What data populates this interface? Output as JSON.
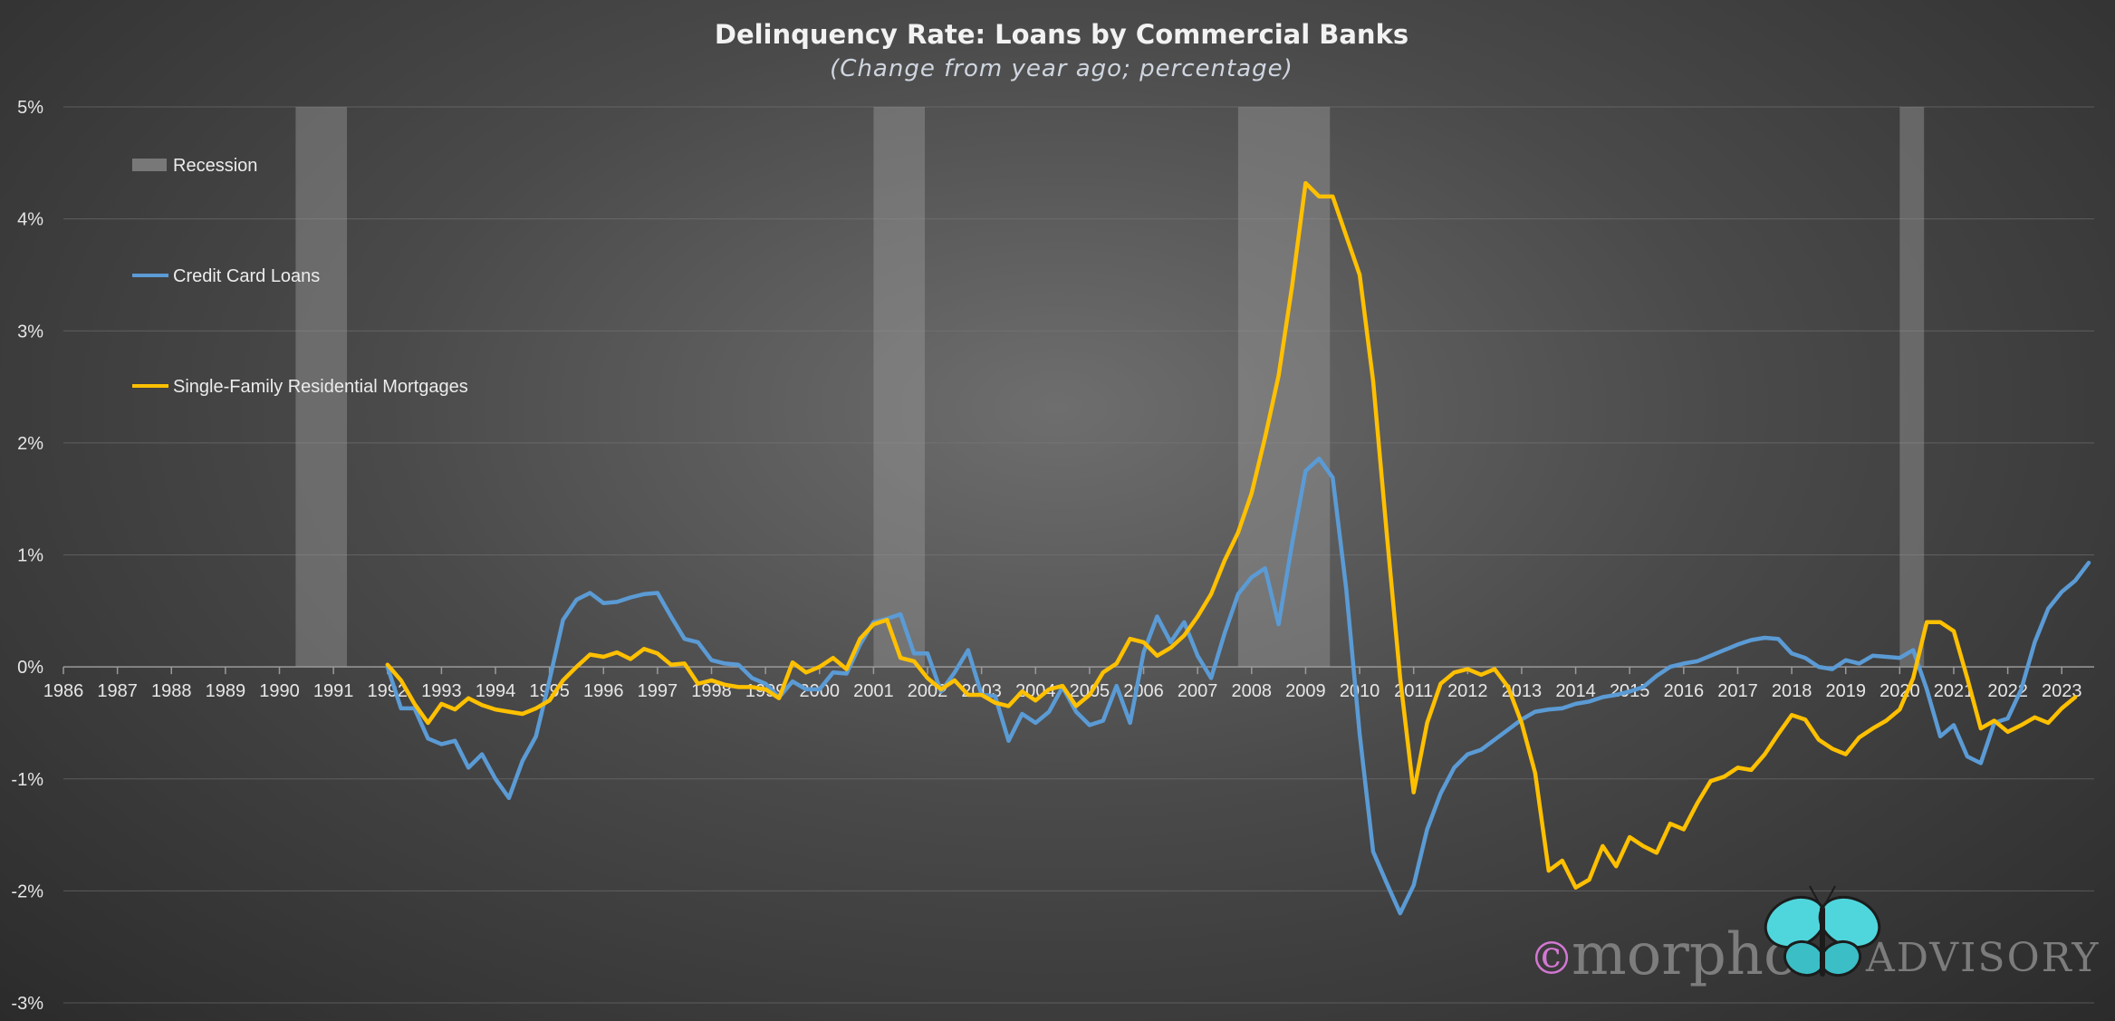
{
  "chart_data": {
    "type": "line",
    "title": "Delinquency Rate: Loans by Commercial Banks",
    "subtitle": "(Change from year ago; percentage)",
    "y_tick_labels": [
      "5%",
      "4%",
      "3%",
      "2%",
      "1%",
      "0%",
      "-1%",
      "-2%",
      "-3%"
    ],
    "ylim": [
      -3,
      5
    ],
    "xlim": [
      1986,
      2023.6
    ],
    "x_tick_labels": [
      "1986",
      "1987",
      "1988",
      "1989",
      "1990",
      "1991",
      "1992",
      "1993",
      "1994",
      "1995",
      "1996",
      "1997",
      "1998",
      "1999",
      "2000",
      "2001",
      "2002",
      "2003",
      "2004",
      "2005",
      "2006",
      "2007",
      "2008",
      "2009",
      "2010",
      "2011",
      "2012",
      "2013",
      "2014",
      "2015",
      "2016",
      "2017",
      "2018",
      "2019",
      "2020",
      "2021",
      "2022",
      "2023"
    ],
    "legend": {
      "placement": "top-left",
      "recession_label": "Recession"
    },
    "recessions": [
      {
        "start": 1990.3,
        "end": 1991.25
      },
      {
        "start": 2001.0,
        "end": 2001.95
      },
      {
        "start": 2007.75,
        "end": 2009.45
      },
      {
        "start": 2020.0,
        "end": 2020.45
      }
    ],
    "series": [
      {
        "name": "Credit Card Loans",
        "color": "#5b9bd5",
        "points": [
          [
            1992.0,
            0.0
          ],
          [
            1992.25,
            -0.37
          ],
          [
            1992.5,
            -0.37
          ],
          [
            1992.75,
            -0.64
          ],
          [
            1993.0,
            -0.69
          ],
          [
            1993.25,
            -0.66
          ],
          [
            1993.5,
            -0.9
          ],
          [
            1993.75,
            -0.78
          ],
          [
            1994.0,
            -1.0
          ],
          [
            1994.25,
            -1.17
          ],
          [
            1994.5,
            -0.84
          ],
          [
            1994.75,
            -0.62
          ],
          [
            1995.0,
            -0.12
          ],
          [
            1995.25,
            0.42
          ],
          [
            1995.5,
            0.6
          ],
          [
            1995.75,
            0.66
          ],
          [
            1996.0,
            0.57
          ],
          [
            1996.25,
            0.58
          ],
          [
            1996.5,
            0.62
          ],
          [
            1996.75,
            0.65
          ],
          [
            1997.0,
            0.66
          ],
          [
            1997.25,
            0.45
          ],
          [
            1997.5,
            0.25
          ],
          [
            1997.75,
            0.22
          ],
          [
            1998.0,
            0.06
          ],
          [
            1998.25,
            0.03
          ],
          [
            1998.5,
            0.02
          ],
          [
            1998.75,
            -0.1
          ],
          [
            1999.0,
            -0.15
          ],
          [
            1999.25,
            -0.27
          ],
          [
            1999.5,
            -0.13
          ],
          [
            1999.75,
            -0.2
          ],
          [
            2000.0,
            -0.2
          ],
          [
            2000.25,
            -0.05
          ],
          [
            2000.5,
            -0.06
          ],
          [
            2000.75,
            0.2
          ],
          [
            2001.0,
            0.4
          ],
          [
            2001.25,
            0.43
          ],
          [
            2001.5,
            0.47
          ],
          [
            2001.75,
            0.12
          ],
          [
            2002.0,
            0.12
          ],
          [
            2002.25,
            -0.22
          ],
          [
            2002.5,
            -0.05
          ],
          [
            2002.75,
            0.15
          ],
          [
            2003.0,
            -0.25
          ],
          [
            2003.25,
            -0.26
          ],
          [
            2003.5,
            -0.66
          ],
          [
            2003.75,
            -0.42
          ],
          [
            2004.0,
            -0.5
          ],
          [
            2004.25,
            -0.4
          ],
          [
            2004.5,
            -0.18
          ],
          [
            2004.75,
            -0.4
          ],
          [
            2005.0,
            -0.52
          ],
          [
            2005.25,
            -0.48
          ],
          [
            2005.5,
            -0.17
          ],
          [
            2005.75,
            -0.5
          ],
          [
            2006.0,
            0.13
          ],
          [
            2006.25,
            0.45
          ],
          [
            2006.5,
            0.22
          ],
          [
            2006.75,
            0.4
          ],
          [
            2007.0,
            0.1
          ],
          [
            2007.25,
            -0.1
          ],
          [
            2007.5,
            0.3
          ],
          [
            2007.75,
            0.65
          ],
          [
            2008.0,
            0.8
          ],
          [
            2008.25,
            0.88
          ],
          [
            2008.5,
            0.38
          ],
          [
            2008.75,
            1.1
          ],
          [
            2009.0,
            1.75
          ],
          [
            2009.25,
            1.86
          ],
          [
            2009.5,
            1.69
          ],
          [
            2009.75,
            0.7
          ],
          [
            2010.0,
            -0.6
          ],
          [
            2010.25,
            -1.65
          ],
          [
            2010.5,
            -1.93
          ],
          [
            2010.75,
            -2.2
          ],
          [
            2011.0,
            -1.95
          ],
          [
            2011.25,
            -1.45
          ],
          [
            2011.5,
            -1.13
          ],
          [
            2011.75,
            -0.9
          ],
          [
            2012.0,
            -0.78
          ],
          [
            2012.25,
            -0.74
          ],
          [
            2012.5,
            -0.65
          ],
          [
            2012.75,
            -0.56
          ],
          [
            2013.0,
            -0.47
          ],
          [
            2013.25,
            -0.4
          ],
          [
            2013.5,
            -0.38
          ],
          [
            2013.75,
            -0.37
          ],
          [
            2014.0,
            -0.33
          ],
          [
            2014.25,
            -0.31
          ],
          [
            2014.5,
            -0.27
          ],
          [
            2014.75,
            -0.25
          ],
          [
            2015.0,
            -0.22
          ],
          [
            2015.25,
            -0.18
          ],
          [
            2015.5,
            -0.08
          ],
          [
            2015.75,
            0.0
          ],
          [
            2016.0,
            0.03
          ],
          [
            2016.25,
            0.05
          ],
          [
            2016.5,
            0.1
          ],
          [
            2016.75,
            0.15
          ],
          [
            2017.0,
            0.2
          ],
          [
            2017.25,
            0.24
          ],
          [
            2017.5,
            0.26
          ],
          [
            2017.75,
            0.25
          ],
          [
            2018.0,
            0.12
          ],
          [
            2018.25,
            0.08
          ],
          [
            2018.5,
            0.0
          ],
          [
            2018.75,
            -0.02
          ],
          [
            2019.0,
            0.06
          ],
          [
            2019.25,
            0.03
          ],
          [
            2019.5,
            0.1
          ],
          [
            2019.75,
            0.09
          ],
          [
            2020.0,
            0.08
          ],
          [
            2020.25,
            0.15
          ],
          [
            2020.5,
            -0.2
          ],
          [
            2020.75,
            -0.62
          ],
          [
            2021.0,
            -0.52
          ],
          [
            2021.25,
            -0.8
          ],
          [
            2021.5,
            -0.86
          ],
          [
            2021.75,
            -0.5
          ],
          [
            2022.0,
            -0.46
          ],
          [
            2022.25,
            -0.2
          ],
          [
            2022.5,
            0.22
          ],
          [
            2022.75,
            0.52
          ],
          [
            2023.0,
            0.67
          ],
          [
            2023.25,
            0.77
          ],
          [
            2023.5,
            0.93
          ]
        ]
      },
      {
        "name": "Single-Family Residential Mortgages",
        "color": "#ffc000",
        "points": [
          [
            1992.0,
            0.02
          ],
          [
            1992.25,
            -0.12
          ],
          [
            1992.5,
            -0.33
          ],
          [
            1992.75,
            -0.5
          ],
          [
            1993.0,
            -0.33
          ],
          [
            1993.25,
            -0.38
          ],
          [
            1993.5,
            -0.28
          ],
          [
            1993.75,
            -0.34
          ],
          [
            1994.0,
            -0.38
          ],
          [
            1994.25,
            -0.4
          ],
          [
            1994.5,
            -0.42
          ],
          [
            1994.75,
            -0.37
          ],
          [
            1995.0,
            -0.3
          ],
          [
            1995.25,
            -0.12
          ],
          [
            1995.5,
            0.0
          ],
          [
            1995.75,
            0.11
          ],
          [
            1996.0,
            0.09
          ],
          [
            1996.25,
            0.13
          ],
          [
            1996.5,
            0.07
          ],
          [
            1996.75,
            0.16
          ],
          [
            1997.0,
            0.12
          ],
          [
            1997.25,
            0.02
          ],
          [
            1997.5,
            0.03
          ],
          [
            1997.75,
            -0.15
          ],
          [
            1998.0,
            -0.12
          ],
          [
            1998.25,
            -0.16
          ],
          [
            1998.5,
            -0.18
          ],
          [
            1998.75,
            -0.18
          ],
          [
            1999.0,
            -0.2
          ],
          [
            1999.25,
            -0.28
          ],
          [
            1999.5,
            0.04
          ],
          [
            1999.75,
            -0.05
          ],
          [
            2000.0,
            0.0
          ],
          [
            2000.25,
            0.08
          ],
          [
            2000.5,
            -0.02
          ],
          [
            2000.75,
            0.25
          ],
          [
            2001.0,
            0.38
          ],
          [
            2001.25,
            0.42
          ],
          [
            2001.5,
            0.08
          ],
          [
            2001.75,
            0.05
          ],
          [
            2002.0,
            -0.1
          ],
          [
            2002.25,
            -0.2
          ],
          [
            2002.5,
            -0.12
          ],
          [
            2002.75,
            -0.25
          ],
          [
            2003.0,
            -0.25
          ],
          [
            2003.25,
            -0.32
          ],
          [
            2003.5,
            -0.35
          ],
          [
            2003.75,
            -0.22
          ],
          [
            2004.0,
            -0.3
          ],
          [
            2004.25,
            -0.2
          ],
          [
            2004.5,
            -0.17
          ],
          [
            2004.75,
            -0.35
          ],
          [
            2005.0,
            -0.25
          ],
          [
            2005.25,
            -0.05
          ],
          [
            2005.5,
            0.03
          ],
          [
            2005.75,
            0.25
          ],
          [
            2006.0,
            0.22
          ],
          [
            2006.25,
            0.1
          ],
          [
            2006.5,
            0.17
          ],
          [
            2006.75,
            0.28
          ],
          [
            2007.0,
            0.45
          ],
          [
            2007.25,
            0.65
          ],
          [
            2007.5,
            0.95
          ],
          [
            2007.75,
            1.2
          ],
          [
            2008.0,
            1.55
          ],
          [
            2008.25,
            2.05
          ],
          [
            2008.5,
            2.6
          ],
          [
            2008.75,
            3.4
          ],
          [
            2009.0,
            4.32
          ],
          [
            2009.25,
            4.2
          ],
          [
            2009.5,
            4.2
          ],
          [
            2009.75,
            3.85
          ],
          [
            2010.0,
            3.5
          ],
          [
            2010.25,
            2.55
          ],
          [
            2010.5,
            1.2
          ],
          [
            2010.75,
            -0.1
          ],
          [
            2011.0,
            -1.12
          ],
          [
            2011.25,
            -0.5
          ],
          [
            2011.5,
            -0.15
          ],
          [
            2011.75,
            -0.05
          ],
          [
            2012.0,
            -0.02
          ],
          [
            2012.25,
            -0.07
          ],
          [
            2012.5,
            -0.02
          ],
          [
            2012.75,
            -0.18
          ],
          [
            2013.0,
            -0.5
          ],
          [
            2013.25,
            -0.95
          ],
          [
            2013.5,
            -1.82
          ],
          [
            2013.75,
            -1.73
          ],
          [
            2014.0,
            -1.97
          ],
          [
            2014.25,
            -1.9
          ],
          [
            2014.5,
            -1.6
          ],
          [
            2014.75,
            -1.78
          ],
          [
            2015.0,
            -1.52
          ],
          [
            2015.25,
            -1.6
          ],
          [
            2015.5,
            -1.66
          ],
          [
            2015.75,
            -1.4
          ],
          [
            2016.0,
            -1.45
          ],
          [
            2016.25,
            -1.22
          ],
          [
            2016.5,
            -1.02
          ],
          [
            2016.75,
            -0.98
          ],
          [
            2017.0,
            -0.9
          ],
          [
            2017.25,
            -0.92
          ],
          [
            2017.5,
            -0.78
          ],
          [
            2017.75,
            -0.6
          ],
          [
            2018.0,
            -0.43
          ],
          [
            2018.25,
            -0.47
          ],
          [
            2018.5,
            -0.65
          ],
          [
            2018.75,
            -0.73
          ],
          [
            2019.0,
            -0.78
          ],
          [
            2019.25,
            -0.63
          ],
          [
            2019.5,
            -0.55
          ],
          [
            2019.75,
            -0.48
          ],
          [
            2020.0,
            -0.38
          ],
          [
            2020.25,
            -0.1
          ],
          [
            2020.5,
            0.4
          ],
          [
            2020.75,
            0.4
          ],
          [
            2021.0,
            0.32
          ],
          [
            2021.25,
            -0.1
          ],
          [
            2021.5,
            -0.55
          ],
          [
            2021.75,
            -0.48
          ],
          [
            2022.0,
            -0.58
          ],
          [
            2022.25,
            -0.52
          ],
          [
            2022.5,
            -0.45
          ],
          [
            2022.75,
            -0.5
          ],
          [
            2023.0,
            -0.37
          ],
          [
            2023.25,
            -0.27
          ]
        ]
      }
    ],
    "watermark": {
      "symbol": "©",
      "brand": "morpho",
      "suffix": "ADVISORY",
      "icon": "butterfly-icon",
      "accent": "#4fd6dc"
    }
  }
}
